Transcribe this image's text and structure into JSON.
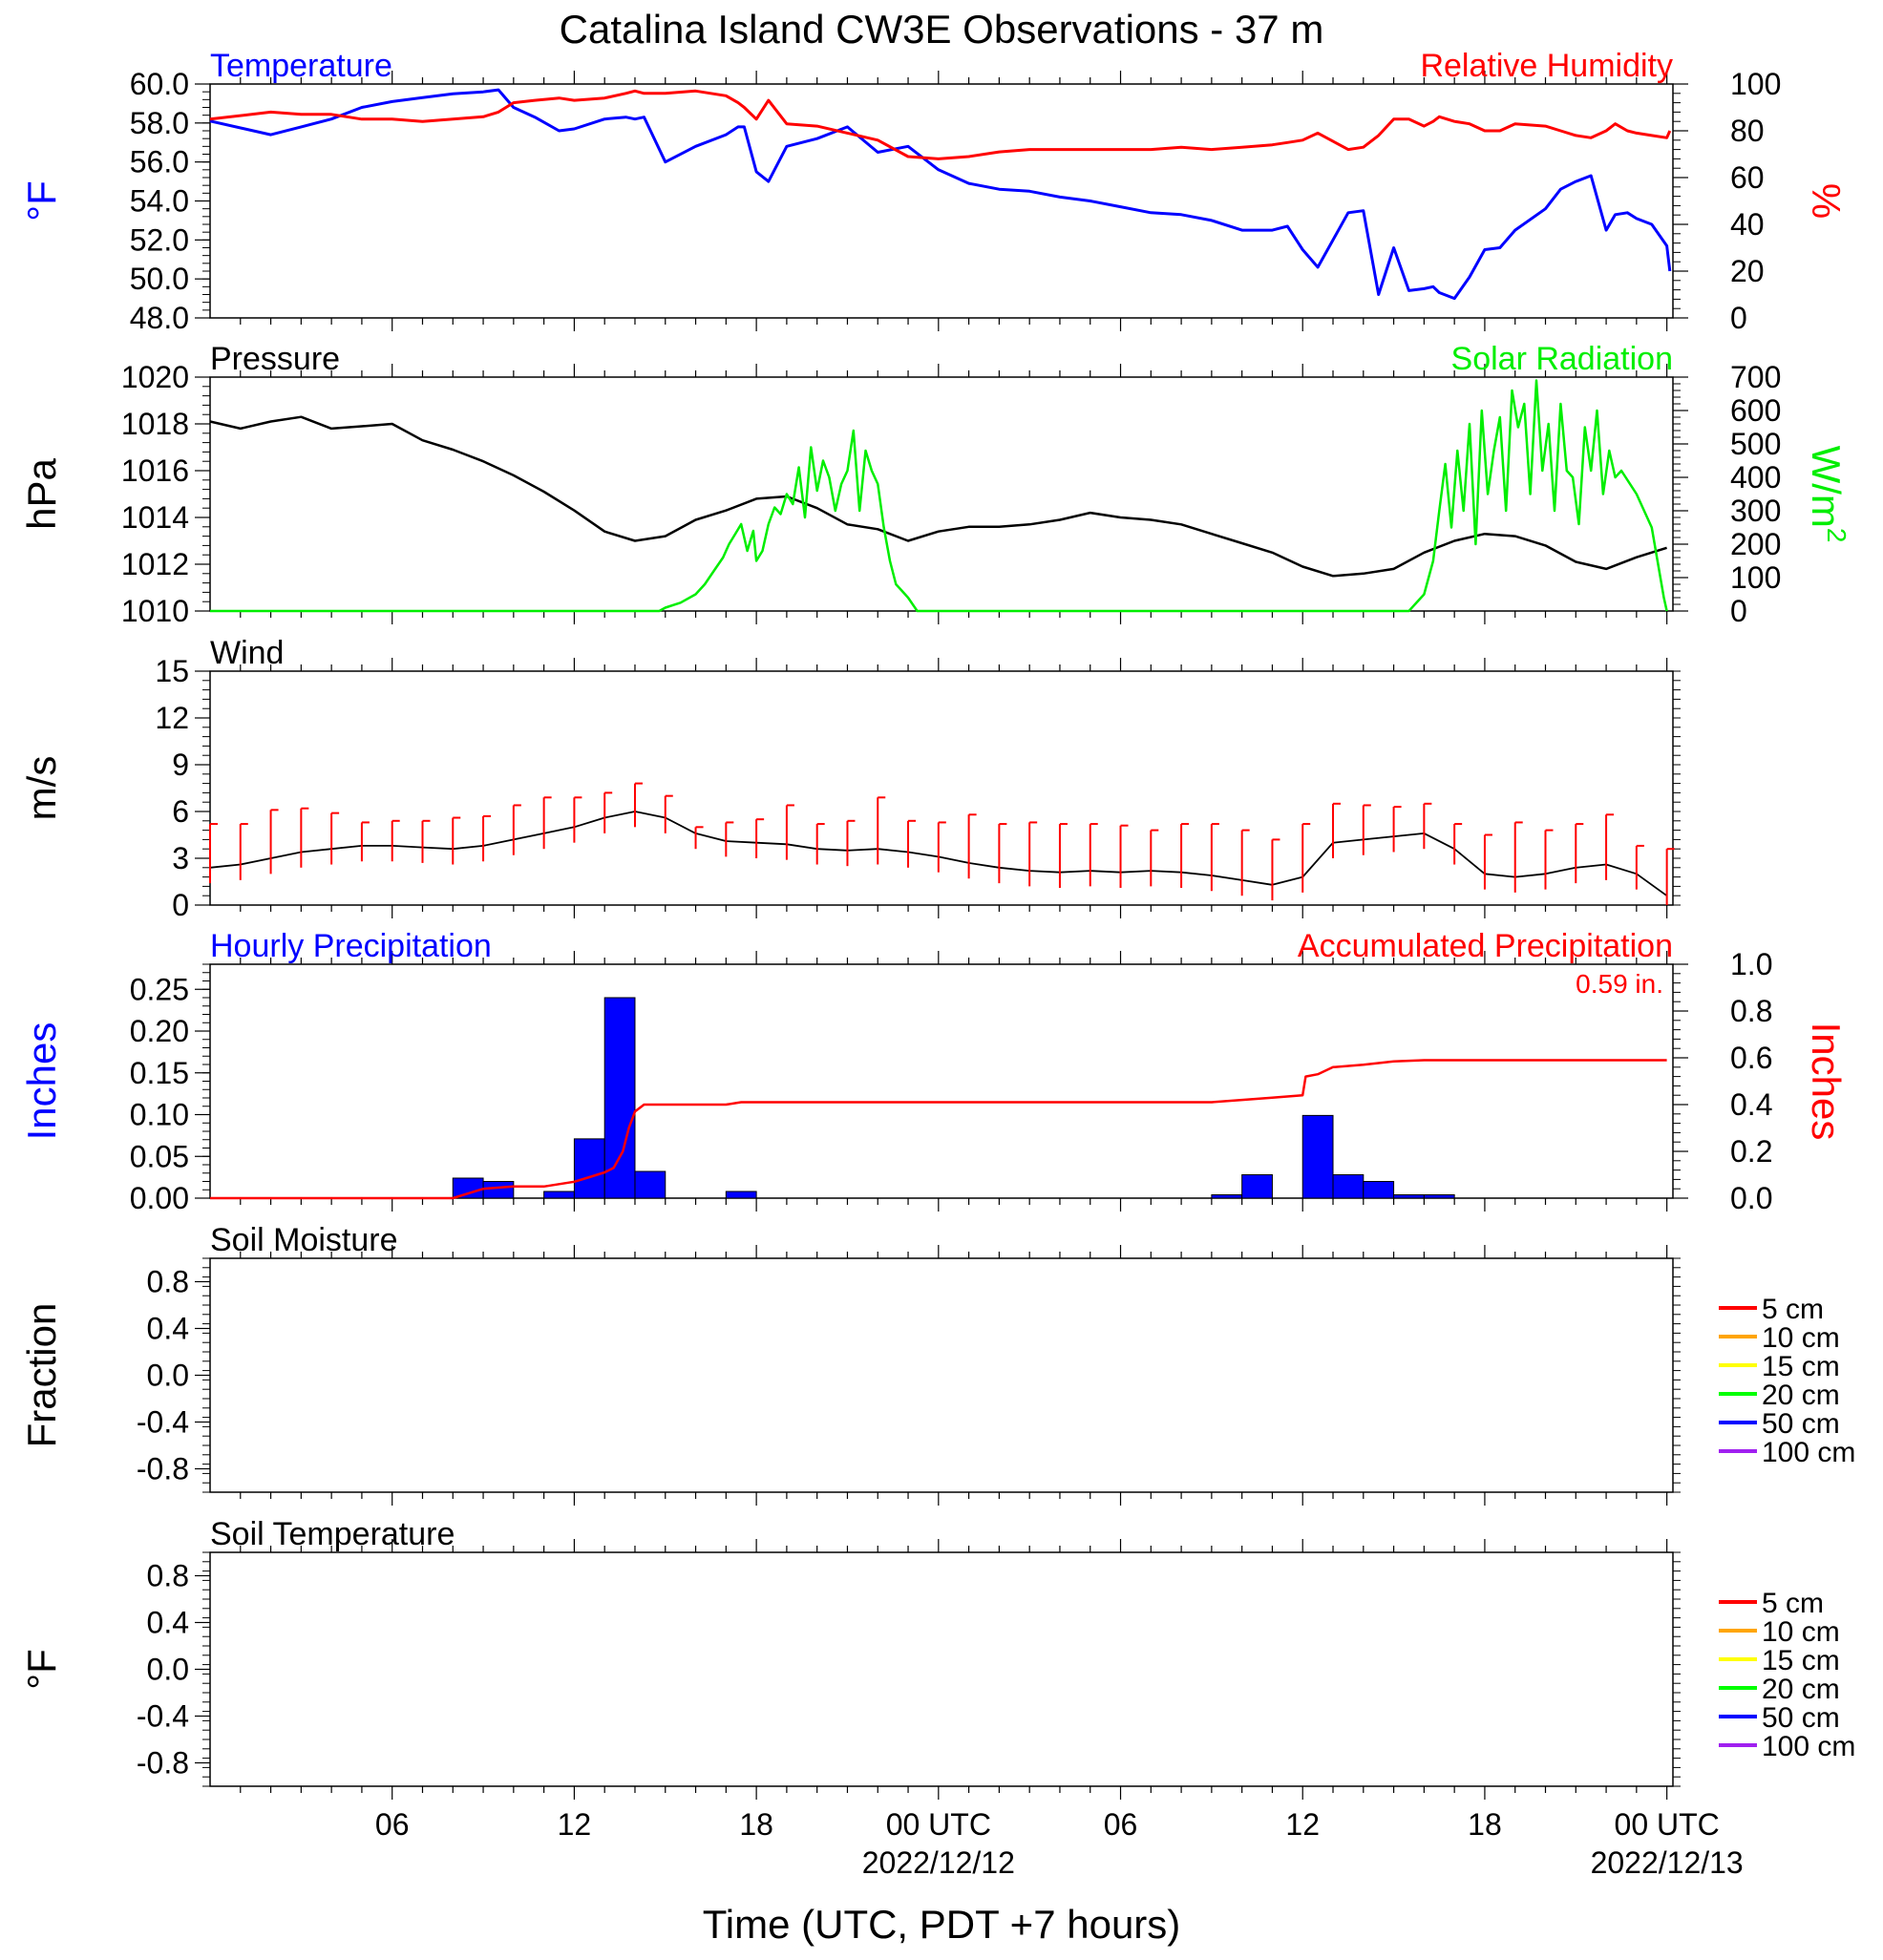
{
  "title": "Catalina Island CW3E Observations - 37 m",
  "xlabel": "Time (UTC, PDT +7 hours)",
  "x_ticks": [
    {
      "hour": 6,
      "label": "06"
    },
    {
      "hour": 12,
      "label": "12"
    },
    {
      "hour": 18,
      "label": "18"
    },
    {
      "hour": 24,
      "label": "00 UTC",
      "date": "2022/12/12"
    },
    {
      "hour": 30,
      "label": "06"
    },
    {
      "hour": 36,
      "label": "12"
    },
    {
      "hour": 42,
      "label": "18"
    },
    {
      "hour": 48,
      "label": "00 UTC",
      "date": "2022/12/13"
    }
  ],
  "colors": {
    "blue": "#0000ff",
    "red": "#ff0000",
    "green": "#00ee00",
    "black": "#000000"
  },
  "chart_data": [
    {
      "id": "temp_rh",
      "type": "line",
      "title_left": "Temperature",
      "title_right": "Relative Humidity",
      "ylabel_left": "°F",
      "ylabel_right": "%",
      "ylim_left": [
        48,
        60
      ],
      "ylim_right": [
        0,
        100
      ],
      "yticks_left": [
        "48.0",
        "50.0",
        "52.0",
        "54.0",
        "56.0",
        "58.0",
        "60.0"
      ],
      "yticks_right": [
        "0",
        "20",
        "40",
        "60",
        "80",
        "100"
      ],
      "x_hours": [
        0,
        2,
        3,
        4,
        5,
        6,
        7,
        8,
        9,
        9.5,
        10,
        10.7,
        11.5,
        12,
        13,
        13.7,
        14,
        14.3,
        15,
        16,
        17,
        17.4,
        17.6,
        18,
        18.4,
        19,
        20,
        21,
        22,
        23,
        24,
        25,
        26,
        27,
        28,
        29,
        30,
        31,
        32,
        33,
        34,
        35,
        35.5,
        36,
        36.5,
        37.5,
        38,
        38.5,
        39,
        39.5,
        40,
        40.3,
        40.5,
        41,
        41.5,
        42,
        42.5,
        43,
        44,
        44.5,
        45,
        45.5,
        46,
        46.3,
        46.7,
        47,
        47.5,
        48,
        48.1
      ],
      "series": [
        {
          "name": "Temperature",
          "color": "#0000ff",
          "axis": "left",
          "values": [
            58.1,
            57.4,
            57.8,
            58.2,
            58.8,
            59.1,
            59.3,
            59.5,
            59.6,
            59.7,
            58.8,
            58.3,
            57.6,
            57.7,
            58.2,
            58.3,
            58.2,
            58.3,
            56.0,
            56.8,
            57.4,
            57.8,
            57.8,
            55.5,
            55.0,
            56.8,
            57.2,
            57.8,
            56.5,
            56.8,
            55.6,
            54.9,
            54.6,
            54.5,
            54.2,
            54.0,
            53.7,
            53.4,
            53.3,
            53.0,
            52.5,
            52.5,
            52.7,
            51.5,
            50.6,
            53.4,
            53.5,
            49.2,
            51.6,
            49.4,
            49.5,
            49.6,
            49.3,
            49.0,
            50.1,
            51.5,
            51.6,
            52.5,
            53.6,
            54.6,
            55.0,
            55.3,
            52.5,
            53.3,
            53.4,
            53.1,
            52.8,
            51.7,
            50.4
          ]
        },
        {
          "name": "Relative Humidity",
          "color": "#ff0000",
          "axis": "right",
          "values": [
            85,
            88,
            87,
            87,
            85,
            85,
            84,
            85,
            86,
            88,
            92,
            93,
            94,
            93,
            94,
            96,
            97,
            96,
            96,
            97,
            95,
            92,
            90,
            85,
            93,
            83,
            82,
            79,
            76,
            69,
            68,
            69,
            71,
            72,
            72,
            72,
            72,
            72,
            73,
            72,
            73,
            74,
            75,
            76,
            79,
            72,
            73,
            78,
            85,
            85,
            82,
            84,
            86,
            84,
            83,
            80,
            80,
            83,
            82,
            80,
            78,
            77,
            80,
            83,
            80,
            79,
            78,
            77,
            80
          ]
        }
      ]
    },
    {
      "id": "pres_solar",
      "type": "line",
      "title_left": "Pressure",
      "title_right": "Solar Radiation",
      "ylabel_left": "hPa",
      "ylabel_right_base": "W/m",
      "ylabel_right_sup": "2",
      "ylim_left": [
        1010,
        1020
      ],
      "ylim_right": [
        0,
        700
      ],
      "yticks_left": [
        "1010",
        "1012",
        "1014",
        "1016",
        "1018",
        "1020"
      ],
      "yticks_right": [
        "0",
        "100",
        "200",
        "300",
        "400",
        "500",
        "600",
        "700"
      ],
      "series": [
        {
          "name": "Pressure",
          "color": "#000000",
          "axis": "left",
          "x": [
            0,
            1,
            2,
            3,
            4,
            5,
            6,
            7,
            8,
            9,
            10,
            11,
            12,
            13,
            14,
            15,
            16,
            17,
            18,
            19,
            20,
            21,
            22,
            23,
            24,
            25,
            26,
            27,
            28,
            29,
            30,
            31,
            32,
            33,
            34,
            35,
            36,
            37,
            38,
            39,
            40,
            41,
            42,
            43,
            44,
            45,
            46,
            47,
            48
          ],
          "values": [
            1018.1,
            1017.8,
            1018.1,
            1018.3,
            1017.8,
            1017.9,
            1018.0,
            1017.3,
            1016.9,
            1016.4,
            1015.8,
            1015.1,
            1014.3,
            1013.4,
            1013.0,
            1013.2,
            1013.9,
            1014.3,
            1014.8,
            1014.9,
            1014.4,
            1013.7,
            1013.5,
            1013.0,
            1013.4,
            1013.6,
            1013.6,
            1013.7,
            1013.9,
            1014.2,
            1014.0,
            1013.9,
            1013.7,
            1013.3,
            1012.9,
            1012.5,
            1011.9,
            1011.5,
            1011.6,
            1011.8,
            1012.5,
            1013.0,
            1013.3,
            1013.2,
            1012.8,
            1012.1,
            1011.8,
            1012.3,
            1012.7
          ]
        },
        {
          "name": "Solar Radiation",
          "color": "#00ee00",
          "axis": "right",
          "x": [
            0,
            14.8,
            15.0,
            15.5,
            16.0,
            16.3,
            16.6,
            16.9,
            17.1,
            17.3,
            17.5,
            17.7,
            17.9,
            18.0,
            18.2,
            18.4,
            18.6,
            18.8,
            19.0,
            19.2,
            19.4,
            19.6,
            19.8,
            20.0,
            20.2,
            20.4,
            20.6,
            20.8,
            21.0,
            21.2,
            21.4,
            21.6,
            21.8,
            22.0,
            22.2,
            22.4,
            22.6,
            22.8,
            23.0,
            23.3,
            23.6,
            39.5,
            40.0,
            40.3,
            40.5,
            40.7,
            40.9,
            41.1,
            41.3,
            41.5,
            41.7,
            41.9,
            42.1,
            42.3,
            42.5,
            42.7,
            42.9,
            43.1,
            43.3,
            43.5,
            43.7,
            43.9,
            44.1,
            44.3,
            44.5,
            44.7,
            44.9,
            45.1,
            45.3,
            45.5,
            45.7,
            45.9,
            46.1,
            46.3,
            46.5,
            47.0,
            47.5,
            47.9,
            48.0
          ],
          "values": [
            0,
            0,
            10,
            25,
            50,
            80,
            120,
            160,
            200,
            230,
            260,
            180,
            240,
            150,
            180,
            260,
            310,
            290,
            350,
            320,
            430,
            280,
            490,
            360,
            450,
            400,
            300,
            380,
            420,
            540,
            300,
            480,
            420,
            380,
            250,
            150,
            80,
            60,
            40,
            0,
            0,
            0,
            50,
            150,
            300,
            440,
            250,
            480,
            300,
            560,
            200,
            600,
            350,
            480,
            580,
            300,
            660,
            550,
            620,
            350,
            690,
            420,
            560,
            300,
            620,
            420,
            400,
            260,
            550,
            420,
            600,
            350,
            480,
            400,
            420,
            350,
            250,
            40,
            0
          ]
        }
      ]
    },
    {
      "id": "wind",
      "type": "line",
      "title_left": "Wind",
      "ylabel_left": "m/s",
      "ylim_left": [
        0,
        15
      ],
      "yticks_left": [
        "0",
        "3",
        "6",
        "9",
        "12",
        "15"
      ],
      "x_hours": [
        0,
        1,
        2,
        3,
        4,
        5,
        6,
        7,
        8,
        9,
        10,
        11,
        12,
        13,
        14,
        15,
        16,
        17,
        18,
        19,
        20,
        21,
        22,
        23,
        24,
        25,
        26,
        27,
        28,
        29,
        30,
        31,
        32,
        33,
        34,
        35,
        36,
        37,
        38,
        39,
        40,
        41,
        42,
        43,
        44,
        45,
        46,
        47,
        48
      ],
      "series": [
        {
          "name": "Wind speed",
          "color": "#000000",
          "axis": "left",
          "values": [
            2.4,
            2.6,
            3.0,
            3.4,
            3.6,
            3.8,
            3.8,
            3.7,
            3.6,
            3.8,
            4.2,
            4.6,
            5.0,
            5.6,
            6.0,
            5.6,
            4.6,
            4.1,
            4.0,
            3.9,
            3.6,
            3.5,
            3.6,
            3.4,
            3.1,
            2.7,
            2.4,
            2.2,
            2.1,
            2.2,
            2.1,
            2.2,
            2.1,
            1.9,
            1.6,
            1.3,
            1.8,
            4.0,
            4.2,
            4.4,
            4.6,
            3.6,
            2.0,
            1.8,
            2.0,
            2.4,
            2.6,
            2.0,
            0.6
          ]
        },
        {
          "name": "Wind gust",
          "color": "#ff0000",
          "axis": "left",
          "values": [
            5.2,
            5.2,
            6.1,
            6.2,
            5.9,
            5.3,
            5.4,
            5.4,
            5.6,
            5.7,
            6.4,
            6.9,
            6.9,
            7.2,
            7.8,
            7.0,
            5.0,
            5.3,
            5.5,
            6.4,
            5.2,
            5.4,
            6.9,
            5.4,
            5.3,
            5.8,
            5.2,
            5.3,
            5.2,
            5.2,
            5.1,
            4.8,
            5.2,
            5.2,
            4.8,
            4.2,
            5.2,
            6.5,
            6.4,
            6.3,
            6.5,
            5.2,
            4.5,
            5.3,
            4.8,
            5.2,
            5.8,
            3.8,
            3.6
          ]
        }
      ]
    },
    {
      "id": "precip",
      "type": "bar",
      "title_left": "Hourly Precipitation",
      "title_right": "Accumulated Precipitation",
      "annotation": "0.59 in.",
      "ylabel_left": "Inches",
      "ylabel_right": "Inches",
      "ylim_left": [
        0,
        0.28
      ],
      "ylim_right": [
        0,
        1.0
      ],
      "yticks_left": [
        "0.00",
        "0.05",
        "0.10",
        "0.15",
        "0.20",
        "0.25"
      ],
      "yticks_right": [
        "0.0",
        "0.2",
        "0.4",
        "0.6",
        "0.8",
        "1.0"
      ],
      "bars": [
        {
          "start": 8,
          "value": 0.024
        },
        {
          "start": 9,
          "value": 0.02
        },
        {
          "start": 11,
          "value": 0.008
        },
        {
          "start": 12,
          "value": 0.071
        },
        {
          "start": 13,
          "value": 0.24
        },
        {
          "start": 14,
          "value": 0.032
        },
        {
          "start": 17,
          "value": 0.008
        },
        {
          "start": 33,
          "value": 0.004
        },
        {
          "start": 34,
          "value": 0.028
        },
        {
          "start": 36,
          "value": 0.099
        },
        {
          "start": 37,
          "value": 0.028
        },
        {
          "start": 38,
          "value": 0.02
        },
        {
          "start": 39,
          "value": 0.004
        },
        {
          "start": 40,
          "value": 0.004
        }
      ],
      "bar_color": "#0000ff",
      "accum": {
        "name": "Accumulated Precipitation",
        "color": "#ff0000",
        "x": [
          0,
          8.0,
          9.0,
          10.0,
          11.0,
          12.0,
          12.5,
          13.0,
          13.3,
          13.6,
          13.8,
          14.0,
          14.3,
          14.6,
          15.0,
          17.0,
          17.5,
          33.0,
          34.0,
          35.0,
          36.0,
          36.1,
          36.5,
          37.0,
          38.0,
          39.0,
          40.0,
          48.0
        ],
        "values": [
          0,
          0,
          0.04,
          0.05,
          0.05,
          0.07,
          0.09,
          0.11,
          0.13,
          0.2,
          0.3,
          0.37,
          0.4,
          0.4,
          0.4,
          0.4,
          0.41,
          0.41,
          0.42,
          0.43,
          0.44,
          0.52,
          0.53,
          0.56,
          0.57,
          0.585,
          0.59,
          0.59
        ]
      }
    },
    {
      "id": "soil_moisture",
      "type": "line",
      "title_left": "Soil Moisture",
      "ylabel_left": "Fraction",
      "ylim_left": [
        -1,
        1
      ],
      "yticks_left": [
        "-0.8",
        "-0.4",
        "0.0",
        "0.4",
        "0.8"
      ],
      "legend": [
        {
          "label": "5 cm",
          "color": "#ff0000"
        },
        {
          "label": "10 cm",
          "color": "#ffa500"
        },
        {
          "label": "15 cm",
          "color": "#ffff00"
        },
        {
          "label": "20 cm",
          "color": "#00ff00"
        },
        {
          "label": "50 cm",
          "color": "#0000ff"
        },
        {
          "label": "100 cm",
          "color": "#a020f0"
        }
      ],
      "series": []
    },
    {
      "id": "soil_temp",
      "type": "line",
      "title_left": "Soil Temperature",
      "ylabel_left": "°F",
      "ylim_left": [
        -1,
        1
      ],
      "yticks_left": [
        "-0.8",
        "-0.4",
        "0.0",
        "0.4",
        "0.8"
      ],
      "legend": [
        {
          "label": "5 cm",
          "color": "#ff0000"
        },
        {
          "label": "10 cm",
          "color": "#ffa500"
        },
        {
          "label": "15 cm",
          "color": "#ffff00"
        },
        {
          "label": "20 cm",
          "color": "#00ff00"
        },
        {
          "label": "50 cm",
          "color": "#0000ff"
        },
        {
          "label": "100 cm",
          "color": "#a020f0"
        }
      ],
      "series": []
    }
  ]
}
